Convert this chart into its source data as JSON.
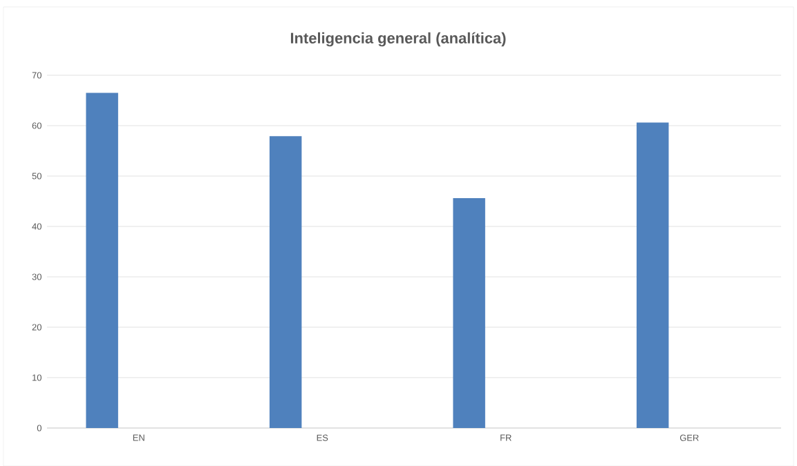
{
  "chart_data": {
    "type": "bar",
    "title": "Inteligencia general (analítica)",
    "categories": [
      "EN",
      "ES",
      "FR",
      "GER"
    ],
    "values": [
      66.5,
      57.9,
      45.6,
      60.6
    ],
    "color": "#4f81bd",
    "ylim": [
      0,
      70
    ],
    "yticks": [
      0,
      10,
      20,
      30,
      40,
      50,
      60,
      70
    ],
    "grid": "y"
  }
}
